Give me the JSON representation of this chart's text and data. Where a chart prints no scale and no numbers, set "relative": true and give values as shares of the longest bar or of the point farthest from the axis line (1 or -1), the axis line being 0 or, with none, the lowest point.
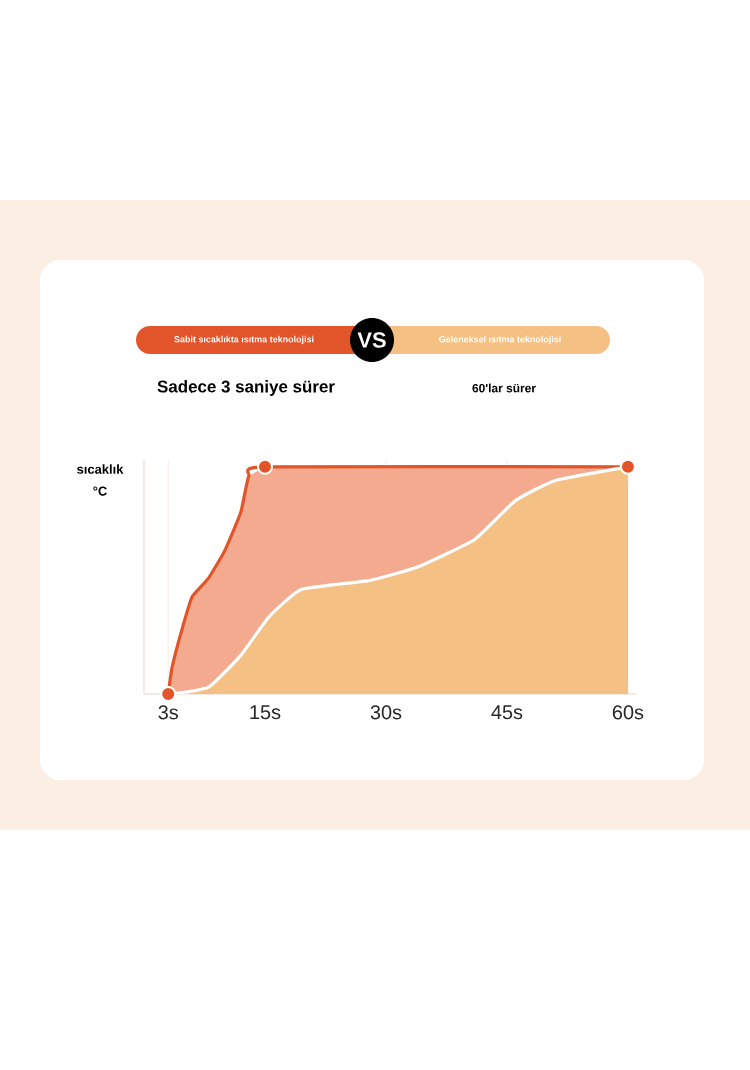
{
  "chart_data": {
    "type": "area",
    "relative": true,
    "ylabel": "sıcaklık °C",
    "legend": "top",
    "grid": "x",
    "xlim": [
      0,
      61
    ],
    "xticks": [
      {
        "value": 3,
        "label": "3s"
      },
      {
        "value": 15,
        "label": "15s"
      },
      {
        "value": 30,
        "label": "30s"
      },
      {
        "value": 45,
        "label": "45s"
      },
      {
        "value": 60,
        "label": "60s"
      }
    ],
    "annotations": [
      "VS",
      "Sadece 3 saniye sürer",
      "60'lar sürer"
    ],
    "series": [
      {
        "name": "Sabit sıcaklıkta ısıtma teknolojisi",
        "color": "#e2552a",
        "x": [
          3,
          3.5,
          5,
          6,
          8,
          10,
          12,
          13,
          15,
          60
        ],
        "values": [
          0,
          0.12,
          0.32,
          0.43,
          0.51,
          0.63,
          0.8,
          0.96,
          1,
          1
        ]
      },
      {
        "name": "Geleneksel ısıtma teknolojisi",
        "color": "#f5c083",
        "x": [
          3.5,
          8,
          12,
          15.5,
          19.5,
          28,
          34,
          41,
          46,
          51,
          60
        ],
        "values": [
          0,
          0.03,
          0.17,
          0.34,
          0.46,
          0.5,
          0.56,
          0.68,
          0.85,
          0.94,
          1
        ]
      },
      {
        "type": "scatter",
        "marker": "circle",
        "color": "#e2552a",
        "x": [
          3,
          15,
          60
        ],
        "values": [
          0,
          1,
          1
        ]
      }
    ]
  }
}
